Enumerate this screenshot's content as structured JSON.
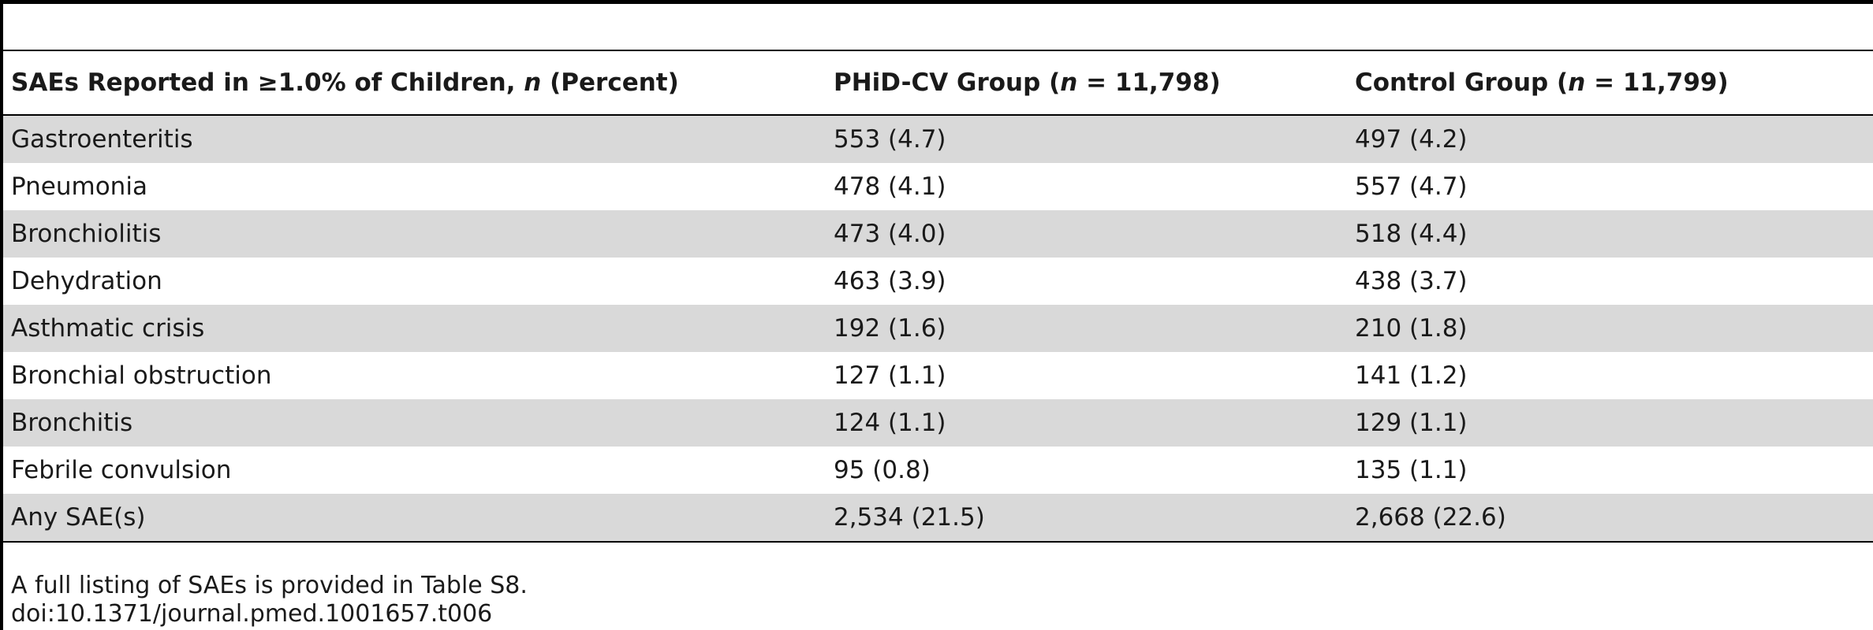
{
  "table": {
    "header": {
      "sae_prefix": "SAEs Reported in ≥1.0% of Children, ",
      "sae_n": "n",
      "sae_suffix": " (Percent)",
      "phid_prefix": "PHiD-CV Group (",
      "phid_n": "n",
      "phid_suffix": " = 11,798)",
      "control_prefix": "Control Group (",
      "control_n": "n",
      "control_suffix": " = 11,799)"
    },
    "rows": [
      {
        "event": "Gastroenteritis",
        "phid": "553 (4.7)",
        "control": "497 (4.2)"
      },
      {
        "event": "Pneumonia",
        "phid": "478 (4.1)",
        "control": "557 (4.7)"
      },
      {
        "event": "Bronchiolitis",
        "phid": "473 (4.0)",
        "control": "518 (4.4)"
      },
      {
        "event": "Dehydration",
        "phid": "463 (3.9)",
        "control": "438 (3.7)"
      },
      {
        "event": "Asthmatic crisis",
        "phid": "192 (1.6)",
        "control": "210 (1.8)"
      },
      {
        "event": "Bronchial obstruction",
        "phid": "127 (1.1)",
        "control": "141 (1.2)"
      },
      {
        "event": "Bronchitis",
        "phid": "124 (1.1)",
        "control": "129 (1.1)"
      },
      {
        "event": "Febrile convulsion",
        "phid": "95 (0.8)",
        "control": "135 (1.1)"
      },
      {
        "event": "Any SAE(s)",
        "phid": "2,534 (21.5)",
        "control": "2,668 (22.6)"
      }
    ]
  },
  "footnote": {
    "line1": "A full listing of SAEs is provided in Table S8.",
    "line2": "doi:10.1371/journal.pmed.1001657.t006"
  }
}
